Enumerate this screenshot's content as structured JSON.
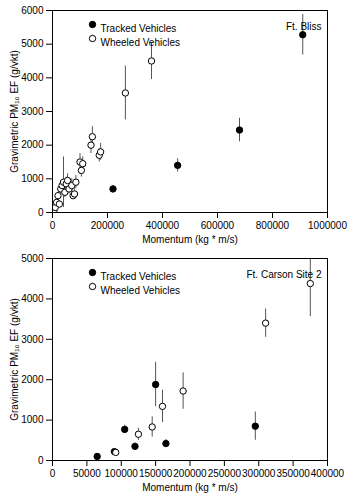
{
  "chart_data": [
    {
      "type": "scatter",
      "annotation": "Ft. Bliss",
      "x_label": "Momentum (kg * m/s)",
      "y_label": "Gravimetric PM₁₀ EF (g/vkt)",
      "xlim": [
        0,
        1000000
      ],
      "xticks": [
        0,
        200000,
        400000,
        600000,
        800000,
        1000000
      ],
      "ylim": [
        0,
        6000
      ],
      "yticks": [
        0,
        1000,
        2000,
        3000,
        4000,
        5000,
        6000
      ],
      "grid": false,
      "legend": "top-left",
      "series": [
        {
          "name": "Tracked Vehicles",
          "color": "#000000",
          "marker": "filled",
          "x": [
            220000,
            455000,
            680000,
            910000
          ],
          "values": [
            700,
            1400,
            2450,
            5280
          ],
          "errors": [
            100,
            200,
            350,
            600
          ]
        },
        {
          "name": "Wheeled Vehicles",
          "color": "#000000",
          "marker": "open",
          "x": [
            5000,
            10000,
            15000,
            20000,
            25000,
            30000,
            35000,
            40000,
            45000,
            50000,
            55000,
            60000,
            70000,
            75000,
            80000,
            85000,
            100000,
            105000,
            110000,
            140000,
            145000,
            170000,
            175000,
            265000,
            360000
          ],
          "values": [
            50,
            150,
            300,
            500,
            250,
            700,
            800,
            900,
            600,
            850,
            950,
            700,
            800,
            500,
            550,
            900,
            1500,
            1250,
            1450,
            2000,
            2250,
            1700,
            1800,
            3550,
            4500
          ],
          "errors": [
            40,
            60,
            80,
            100,
            80,
            150,
            150,
            750,
            150,
            200,
            200,
            150,
            200,
            100,
            150,
            200,
            250,
            200,
            200,
            250,
            300,
            200,
            250,
            800,
            550
          ]
        }
      ]
    },
    {
      "type": "scatter",
      "annotation": "Ft. Carson Site 2",
      "x_label": "Momentum (kg * m/s)",
      "y_label": "Gravimetric PM₁₀ EF (g/vkt)",
      "xlim": [
        0,
        400000
      ],
      "xticks": [
        0,
        50000,
        100000,
        150000,
        200000,
        250000,
        300000,
        350000,
        400000
      ],
      "ylim": [
        0,
        5000
      ],
      "yticks": [
        0,
        1000,
        2000,
        3000,
        4000,
        5000
      ],
      "grid": false,
      "legend": "top-left",
      "series": [
        {
          "name": "Tracked Vehicles",
          "color": "#000000",
          "marker": "filled",
          "x": [
            65000,
            90000,
            105000,
            120000,
            150000,
            165000,
            295000
          ],
          "values": [
            100,
            220,
            770,
            350,
            1880,
            420,
            850
          ],
          "errors": [
            20,
            30,
            100,
            80,
            550,
            100,
            350
          ]
        },
        {
          "name": "Wheeled Vehicles",
          "color": "#000000",
          "marker": "open",
          "x": [
            92000,
            125000,
            145000,
            160000,
            190000,
            310000,
            375000
          ],
          "values": [
            200,
            650,
            830,
            1340,
            1720,
            3400,
            4380
          ],
          "errors": [
            30,
            150,
            250,
            400,
            450,
            350,
            820
          ]
        }
      ]
    }
  ]
}
